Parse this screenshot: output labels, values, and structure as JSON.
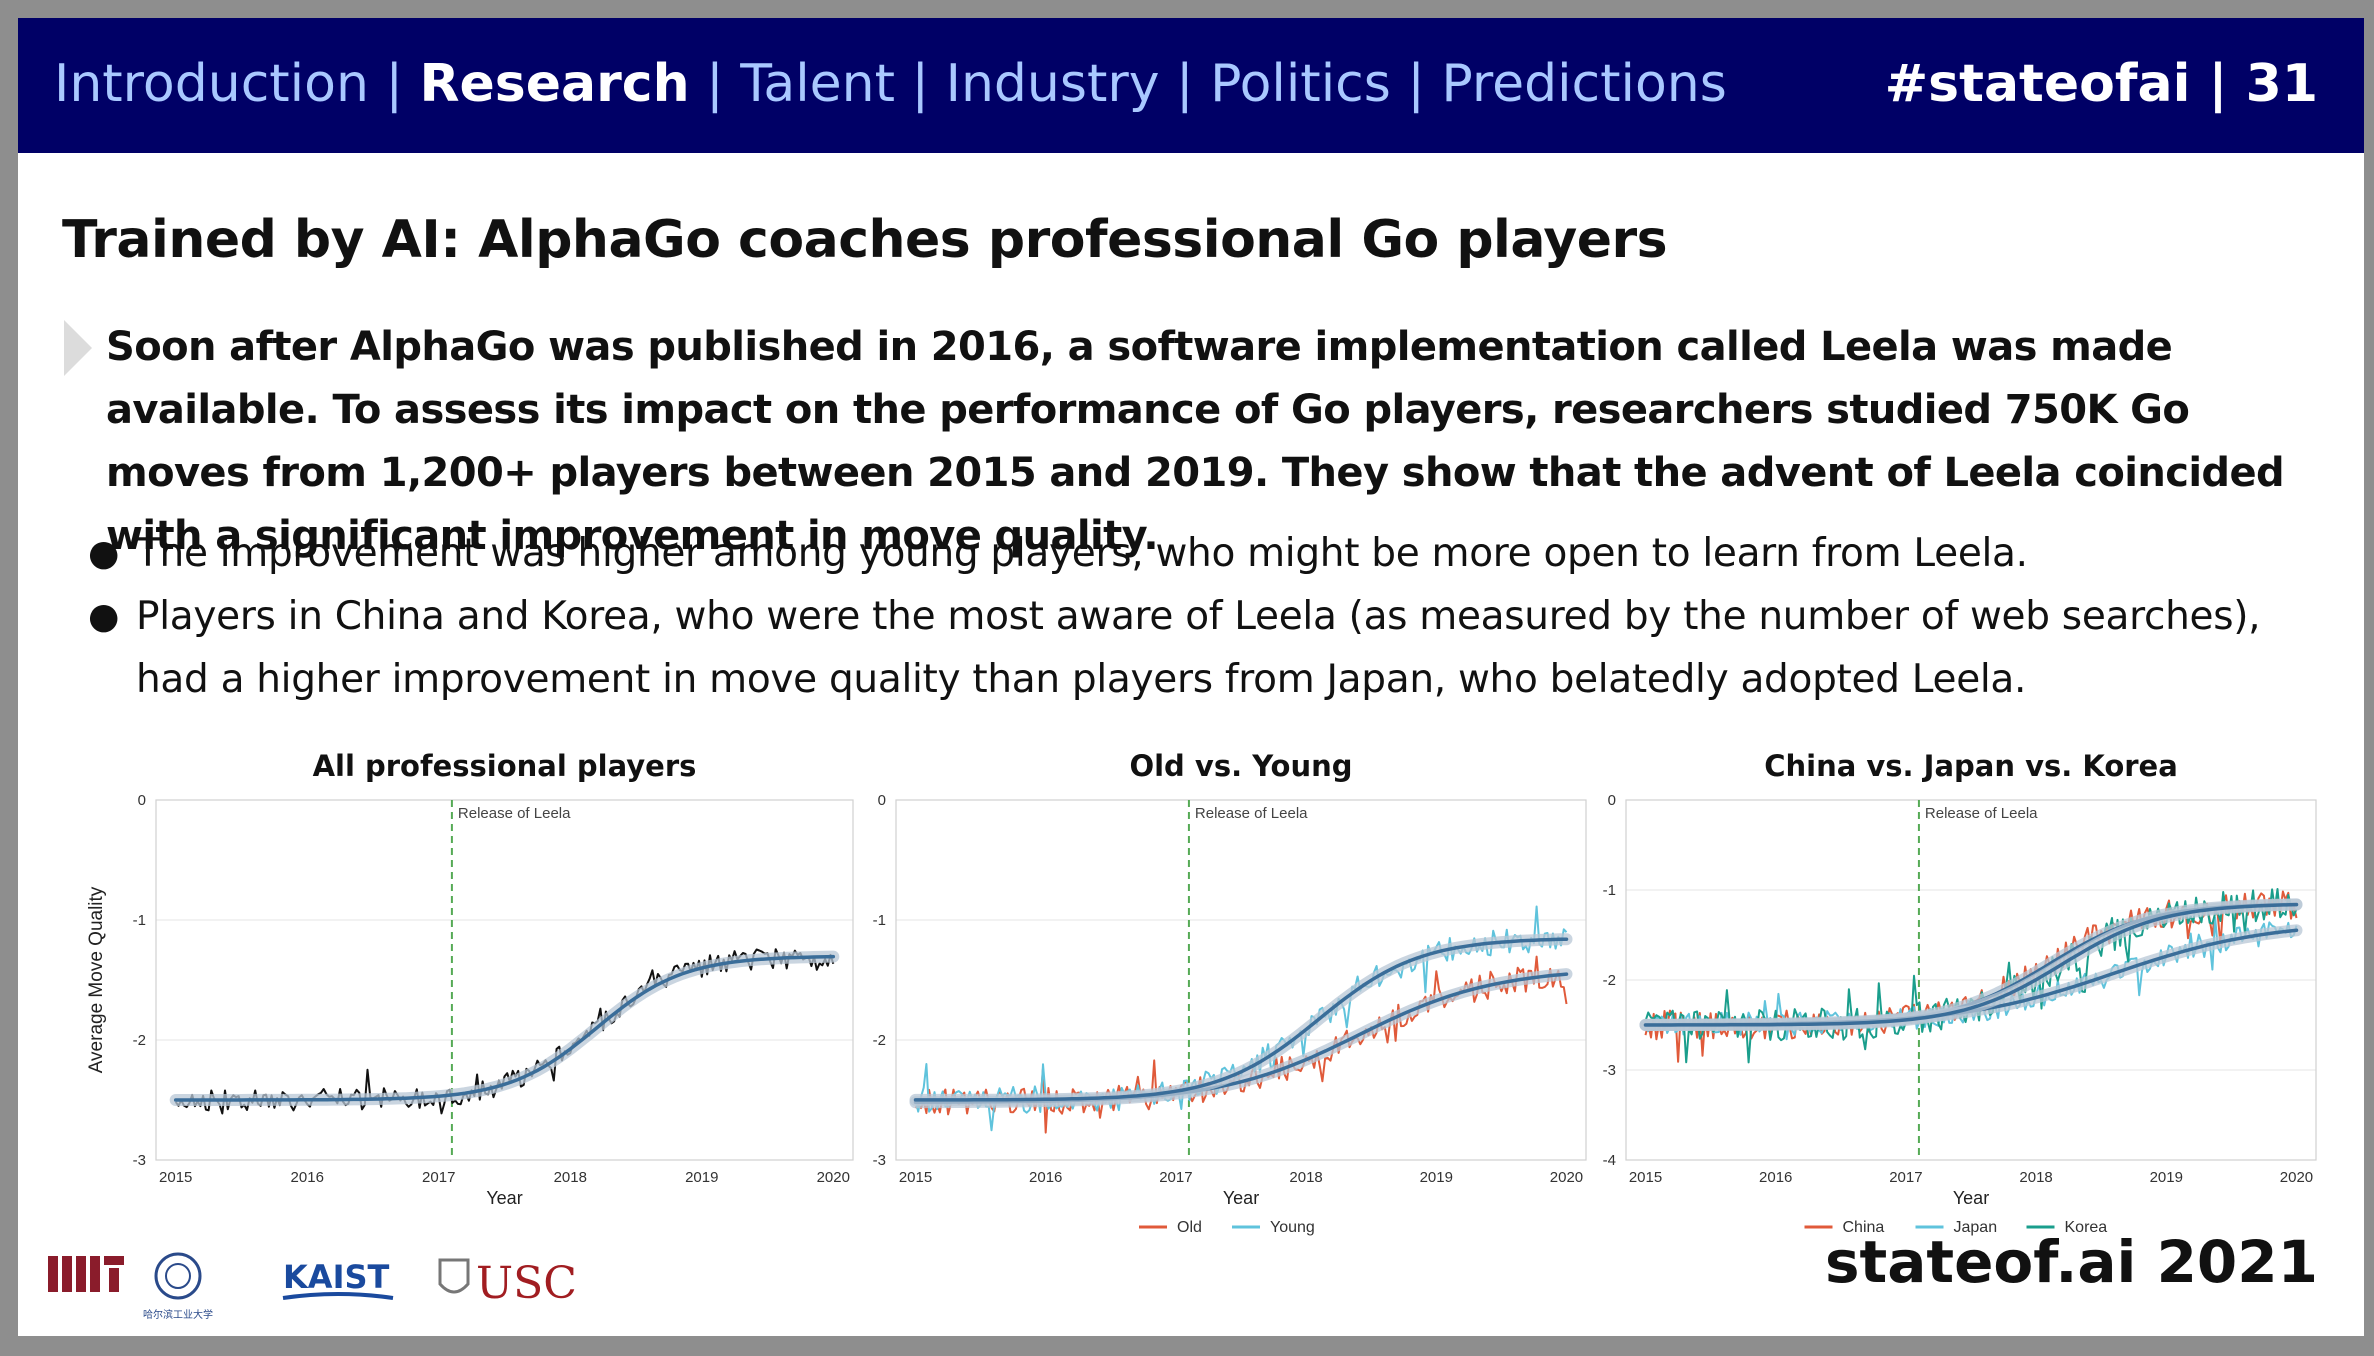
{
  "header": {
    "nav": [
      {
        "label": "Introduction",
        "active": false
      },
      {
        "label": "Research",
        "active": true
      },
      {
        "label": "Talent",
        "active": false
      },
      {
        "label": "Industry",
        "active": false
      },
      {
        "label": "Politics",
        "active": false
      },
      {
        "label": "Predictions",
        "active": false
      }
    ],
    "separator": "|",
    "hashtag": "#stateofai | 31"
  },
  "title": "Trained by AI: AlphaGo coaches professional Go players",
  "lead": "Soon after AlphaGo was published in 2016, a software implementation called Leela was made available. To assess its impact on the performance of Go players, researchers studied 750K Go moves from 1,200+ players between 2015 and 2019. They show that the advent of Leela coincided with a significant improvement in move quality.",
  "bullets": [
    "The improvement was higher among young players, who might be more open to learn from Leela.",
    "Players in China and Korea, who were the most aware of Leela (as measured by the number of web searches), had a higher improvement in move quality than players from Japan, who belatedly adopted Leela."
  ],
  "footer": {
    "brand": "stateof.ai 2021"
  },
  "logos": {
    "mit": "MIT",
    "hit": "哈尔滨工业大学",
    "kaist": "KAIST",
    "usc": "USC"
  },
  "colors": {
    "header_bg": "#000066",
    "nav_text": "#a9c8ff",
    "old": "#e05a3a",
    "young": "#5fc3dc",
    "china": "#e05a3a",
    "japan": "#5fc3dc",
    "korea": "#1a9e8c",
    "trend": "#3a6d99",
    "release": "#55aa55"
  },
  "chart_data": [
    {
      "type": "line",
      "title": "All professional players",
      "xlabel": "Year",
      "ylabel": "Average Move Quality",
      "xlim": [
        2014.85,
        2020.15
      ],
      "ylim": [
        -3,
        0
      ],
      "xticks": [
        "2015",
        "2016",
        "2017",
        "2018",
        "2019",
        "2020"
      ],
      "yticks": [
        "0",
        "-1",
        "-2",
        "-3"
      ],
      "annotation": {
        "label": "Release of Leela",
        "x": 2017.1
      },
      "series": [
        {
          "color": "#111111",
          "start": -2.5,
          "end": -1.3,
          "mid": 2018.2,
          "k": 3.0,
          "noise": 0.09
        }
      ],
      "legend": []
    },
    {
      "type": "line",
      "title": "Old vs. Young",
      "xlabel": "Year",
      "ylabel": "",
      "xlim": [
        2014.85,
        2020.15
      ],
      "ylim": [
        -3,
        0
      ],
      "xticks": [
        "2015",
        "2016",
        "2017",
        "2018",
        "2019",
        "2020"
      ],
      "yticks": [
        "0",
        "-1",
        "-2",
        "-3"
      ],
      "annotation": {
        "label": "Release of Leela",
        "x": 2017.1
      },
      "series": [
        {
          "name": "Old",
          "color": "#e05a3a",
          "start": -2.52,
          "end": -1.4,
          "mid": 2018.4,
          "k": 1.9,
          "noise": 0.11
        },
        {
          "name": "Young",
          "color": "#5fc3dc",
          "start": -2.5,
          "end": -1.15,
          "mid": 2018.1,
          "k": 2.6,
          "noise": 0.11
        }
      ],
      "legend": [
        "Old",
        "Young"
      ]
    },
    {
      "type": "line",
      "title": "China vs. Japan vs. Korea",
      "xlabel": "Year",
      "ylabel": "",
      "xlim": [
        2014.85,
        2020.15
      ],
      "ylim": [
        -4,
        0
      ],
      "xticks": [
        "2015",
        "2016",
        "2017",
        "2018",
        "2019",
        "2020"
      ],
      "yticks": [
        "0",
        "-1",
        "-2",
        "-3",
        "-4"
      ],
      "annotation": {
        "label": "Release of Leela",
        "x": 2017.1
      },
      "series": [
        {
          "name": "China",
          "color": "#e05a3a",
          "start": -2.5,
          "end": -1.15,
          "mid": 2018.1,
          "k": 2.6,
          "noise": 0.16
        },
        {
          "name": "Japan",
          "color": "#5fc3dc",
          "start": -2.5,
          "end": -1.35,
          "mid": 2018.6,
          "k": 1.7,
          "noise": 0.13
        },
        {
          "name": "Korea",
          "color": "#1a9e8c",
          "start": -2.5,
          "end": -1.15,
          "mid": 2018.2,
          "k": 2.6,
          "noise": 0.18
        }
      ],
      "legend": [
        "China",
        "Japan",
        "Korea"
      ]
    }
  ]
}
